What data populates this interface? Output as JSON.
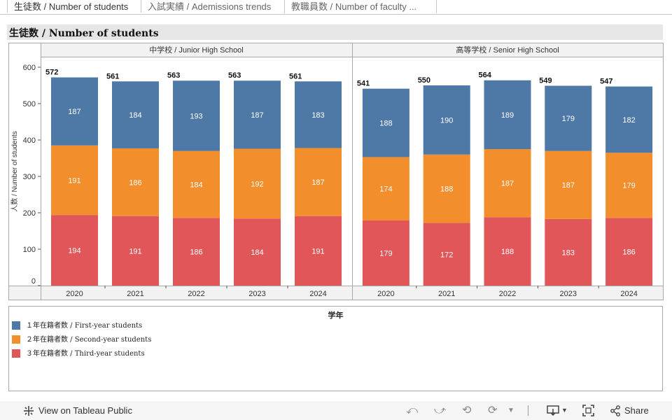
{
  "tabs": [
    {
      "label": "生徒数 / Number of students",
      "active": true
    },
    {
      "label": "入試実績 / Ademissions trends",
      "active": false
    },
    {
      "label": "教職員数 / Number of faculty ...",
      "active": false
    }
  ],
  "sheet_title": "生徒数 / Number of students",
  "legend": {
    "title": "学年",
    "items": [
      {
        "label": "１年在籍者数 / First-year students",
        "color": "#4e79a7"
      },
      {
        "label": "２年在籍者数 / Second-year students",
        "color": "#f28e2b"
      },
      {
        "label": "３年在籍者数 / Third-year students",
        "color": "#e15759"
      }
    ]
  },
  "toolbar": {
    "view_label": "View on Tableau Public",
    "share_label": "Share"
  },
  "chart_data": {
    "type": "bar",
    "stacked": true,
    "ylabel": "人数 / Number of students",
    "yticks": [
      0,
      100,
      200,
      300,
      400,
      500,
      600
    ],
    "ylim": [
      0,
      620
    ],
    "grid": false,
    "panels": [
      {
        "title": "中学校 / Junior High School",
        "categories": [
          "2020",
          "2021",
          "2022",
          "2023",
          "2024"
        ],
        "totals": [
          572,
          561,
          563,
          563,
          561
        ],
        "series": [
          {
            "name": "３年在籍者数 / Third-year students",
            "color": "#e15759",
            "values": [
              194,
              191,
              186,
              184,
              191
            ]
          },
          {
            "name": "２年在籍者数 / Second-year students",
            "color": "#f28e2b",
            "values": [
              191,
              186,
              184,
              192,
              187
            ]
          },
          {
            "name": "１年在籍者数 / First-year students",
            "color": "#4e79a7",
            "values": [
              187,
              184,
              193,
              187,
              183
            ]
          }
        ]
      },
      {
        "title": "高等学校 / Senior High School",
        "categories": [
          "2020",
          "2021",
          "2022",
          "2023",
          "2024"
        ],
        "totals": [
          541,
          550,
          564,
          549,
          547
        ],
        "series": [
          {
            "name": "３年在籍者数 / Third-year students",
            "color": "#e15759",
            "values": [
              179,
              172,
              188,
              183,
              186
            ]
          },
          {
            "name": "２年在籍者数 / Second-year students",
            "color": "#f28e2b",
            "values": [
              174,
              188,
              187,
              187,
              179
            ]
          },
          {
            "name": "１年在籍者数 / First-year students",
            "color": "#4e79a7",
            "values": [
              188,
              190,
              189,
              179,
              182
            ]
          }
        ]
      }
    ]
  }
}
